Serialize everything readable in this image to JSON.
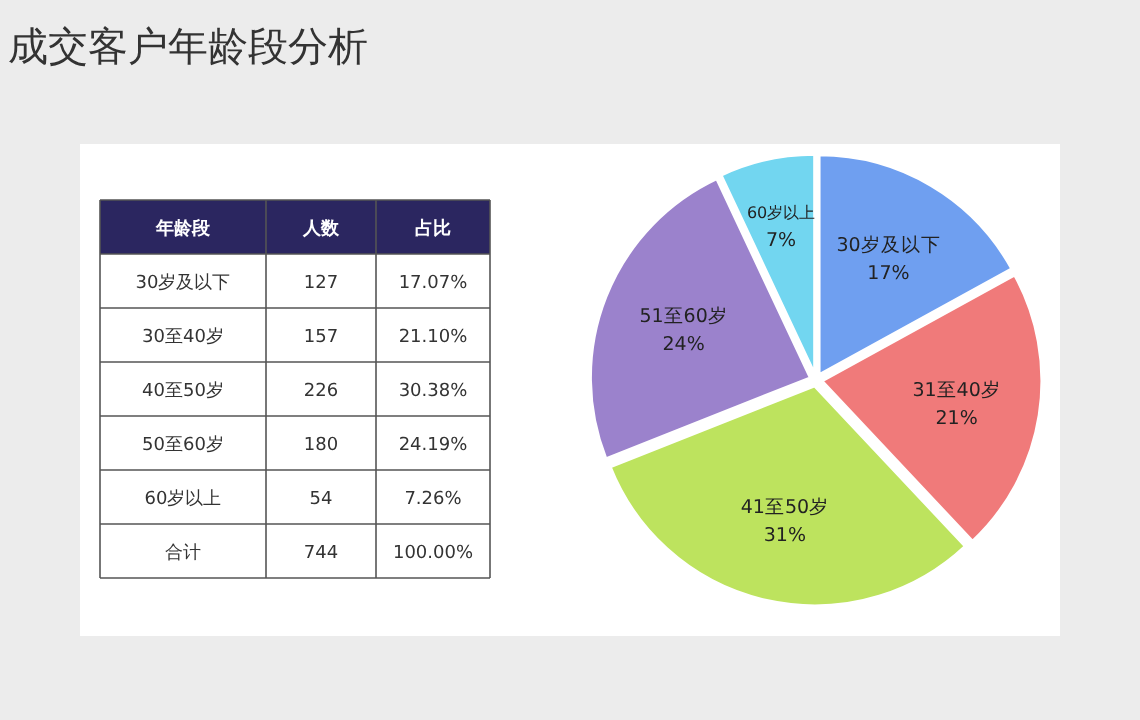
{
  "chart_data": [
    {
      "type": "other",
      "title": "成交客户年龄段分析",
      "ylabel": "年龄段",
      "categories": [
        "30岁及以下",
        "30至40岁",
        "40至50岁",
        "50至60岁",
        "60岁以上",
        "合计"
      ],
      "series": [
        {
          "name": "人数",
          "values": [
            127,
            157,
            226,
            180,
            54,
            744
          ],
          "value_labels": [
            "127",
            "157",
            "226",
            "180",
            "54",
            "744"
          ]
        },
        {
          "name": "占比",
          "values": [
            17.07,
            21.1,
            30.38,
            24.19,
            7.26,
            100.0
          ],
          "value_labels": [
            "17.07%",
            "21.10%",
            "30.38%",
            "24.19%",
            "7.26%",
            "100.00%"
          ]
        }
      ]
    },
    {
      "type": "pie",
      "categories": [
        "30岁及以下",
        "31至40岁",
        "41至50岁",
        "51至60岁",
        "60岁以上"
      ],
      "values": [
        17,
        21,
        31,
        24,
        7
      ],
      "colors": [
        "#6f9ff0",
        "#f07a7a",
        "#bde35e",
        "#9b82cc",
        "#72d6f0"
      ],
      "value_labels": [
        "17%",
        "21%",
        "31%",
        "24%",
        "7%"
      ]
    }
  ]
}
